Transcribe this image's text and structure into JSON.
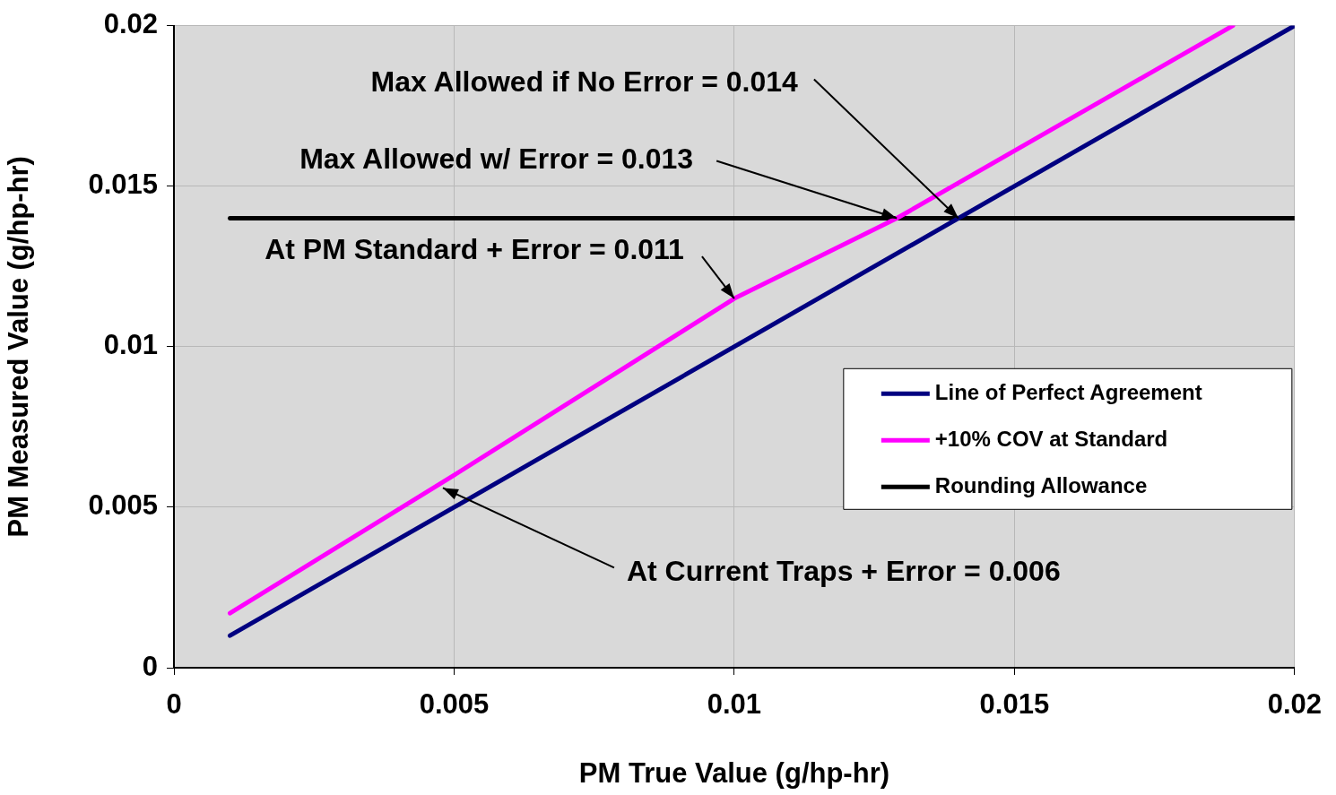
{
  "chart_data": {
    "type": "line",
    "xlabel": "PM True Value (g/hp-hr)",
    "ylabel": "PM Measured Value (g/hp-hr)",
    "xlim": [
      0,
      0.02
    ],
    "xticks": [
      0,
      0.005,
      0.01,
      0.015,
      0.02
    ],
    "ylim": [
      0,
      0.02
    ],
    "yticks": [
      0,
      0.005,
      0.01,
      0.015,
      0.02
    ],
    "grid": true,
    "legend": "right",
    "marker": "none",
    "line_style": "solid",
    "series": [
      {
        "name": "Line of Perfect Agreement",
        "color": "#000080",
        "x": [
          0.001,
          0.02
        ],
        "values": [
          0.001,
          0.02
        ]
      },
      {
        "name": "+10% COV at Standard",
        "color": "#ff00ff",
        "x": [
          0.001,
          0.005,
          0.01,
          0.0129,
          0.0189
        ],
        "values": [
          0.0017,
          0.006,
          0.0115,
          0.014,
          0.02
        ]
      },
      {
        "name": "Rounding Allowance",
        "color": "#000000",
        "x": [
          0.001,
          0.02
        ],
        "values": [
          0.014,
          0.014
        ]
      }
    ],
    "annotations": [
      {
        "text": "Max Allowed if No Error = 0.014",
        "x": 0.014,
        "y": 0.014
      },
      {
        "text": "Max Allowed w/ Error = 0.013",
        "x": 0.0129,
        "y": 0.014
      },
      {
        "text": "At PM Standard + Error = 0.011",
        "x": 0.01,
        "y": 0.0115
      },
      {
        "text": "At Current Traps + Error = 0.006",
        "x": 0.0048,
        "y": 0.0056
      }
    ]
  }
}
